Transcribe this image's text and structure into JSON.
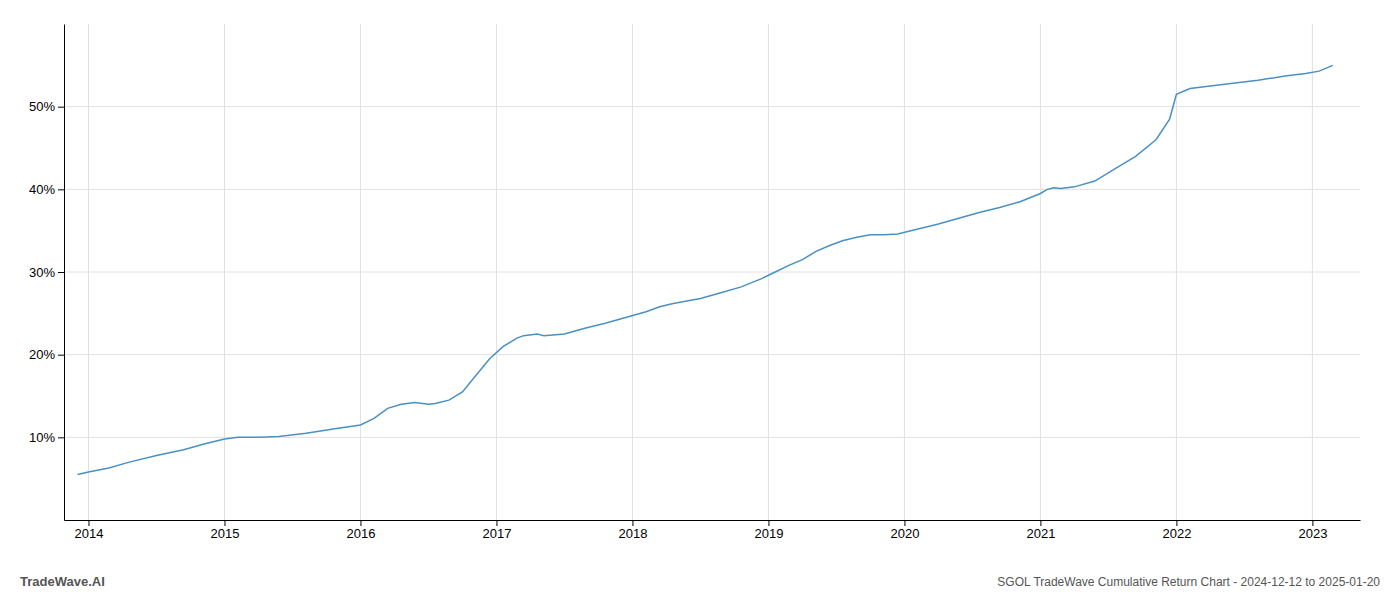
{
  "chart_data": {
    "type": "line",
    "title": "SGOL TradeWave Cumulative Return Chart - 2024-12-12 to 2025-01-20",
    "annotations": [
      "TradeWave.AI"
    ],
    "color": "#4a90c4",
    "grid": true,
    "x": [
      2013.92,
      2014.0,
      2014.15,
      2014.3,
      2014.5,
      2014.7,
      2014.85,
      2015.0,
      2015.1,
      2015.25,
      2015.4,
      2015.6,
      2015.8,
      2016.0,
      2016.1,
      2016.2,
      2016.3,
      2016.4,
      2016.5,
      2016.55,
      2016.65,
      2016.75,
      2016.85,
      2016.95,
      2017.05,
      2017.15,
      2017.2,
      2017.3,
      2017.35,
      2017.5,
      2017.65,
      2017.8,
      2017.95,
      2018.1,
      2018.2,
      2018.3,
      2018.5,
      2018.65,
      2018.8,
      2018.95,
      2019.05,
      2019.15,
      2019.25,
      2019.35,
      2019.45,
      2019.55,
      2019.65,
      2019.75,
      2019.85,
      2019.95,
      2020.1,
      2020.25,
      2020.4,
      2020.55,
      2020.7,
      2020.85,
      2021.0,
      2021.05,
      2021.1,
      2021.15,
      2021.25,
      2021.4,
      2021.55,
      2021.7,
      2021.85,
      2021.95,
      2022.0,
      2022.1,
      2022.25,
      2022.4,
      2022.6,
      2022.8,
      2022.95,
      2023.05,
      2023.15
    ],
    "values": [
      5.5,
      5.8,
      6.3,
      7.0,
      7.8,
      8.5,
      9.2,
      9.8,
      10.0,
      10.0,
      10.1,
      10.5,
      11.0,
      11.5,
      12.3,
      13.5,
      14.0,
      14.2,
      14.0,
      14.1,
      14.5,
      15.5,
      17.5,
      19.5,
      21.0,
      22.0,
      22.3,
      22.5,
      22.3,
      22.5,
      23.2,
      23.8,
      24.5,
      25.2,
      25.8,
      26.2,
      26.8,
      27.5,
      28.2,
      29.2,
      30.0,
      30.8,
      31.5,
      32.5,
      33.2,
      33.8,
      34.2,
      34.5,
      34.5,
      34.6,
      35.2,
      35.8,
      36.5,
      37.2,
      37.8,
      38.5,
      39.5,
      40.0,
      40.2,
      40.1,
      40.3,
      41.0,
      42.5,
      44.0,
      46.0,
      48.5,
      51.5,
      52.2,
      52.5,
      52.8,
      53.2,
      53.7,
      54.0,
      54.3,
      55.0
    ],
    "xlim": [
      2013.82,
      2023.35
    ],
    "xticks": [
      2014,
      2015,
      2016,
      2017,
      2018,
      2019,
      2020,
      2021,
      2022,
      2023
    ],
    "ylim": [
      0,
      60
    ],
    "yticks": [
      {
        "value": 10,
        "label": "10%"
      },
      {
        "value": 20,
        "label": "20%"
      },
      {
        "value": 30,
        "label": "30%"
      },
      {
        "value": 40,
        "label": "40%"
      },
      {
        "value": 50,
        "label": "50%"
      }
    ]
  }
}
